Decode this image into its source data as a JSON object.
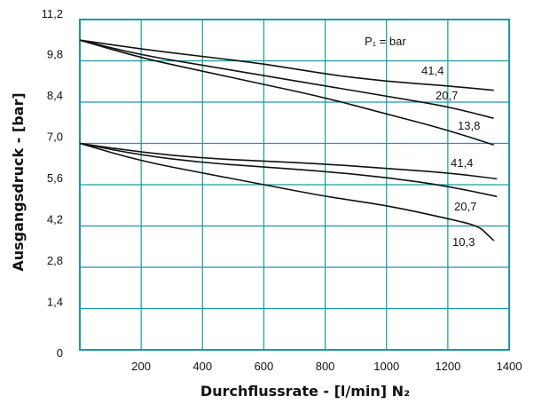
{
  "chart_data": {
    "type": "line",
    "xlabel": "Durchflussrate - [l/min] N₂",
    "ylabel": "Ausgangsdruck - [bar]",
    "legend_title": "P₁ = bar",
    "xlim": [
      0,
      1400
    ],
    "ylim": [
      0,
      11.2
    ],
    "x_ticks": [
      "200",
      "400",
      "600",
      "800",
      "1000",
      "1200",
      "1400"
    ],
    "y_ticks": [
      "0",
      "1,4",
      "2,8",
      "4,2",
      "5,6",
      "7,0",
      "8,4",
      "9,8",
      "11,2"
    ],
    "grid": true,
    "colors": {
      "frame": "#1a9aa0",
      "grid": "#1a9aa0",
      "line": "#111111"
    },
    "series": [
      {
        "name": "41,4",
        "group": "upper",
        "x": [
          0,
          200,
          400,
          600,
          800,
          1000,
          1200,
          1350
        ],
        "y": [
          10.5,
          10.2,
          9.95,
          9.7,
          9.35,
          9.1,
          8.95,
          8.8
        ]
      },
      {
        "name": "20,7",
        "group": "upper",
        "x": [
          0,
          200,
          400,
          600,
          800,
          1000,
          1200,
          1350
        ],
        "y": [
          10.5,
          10.0,
          9.65,
          9.3,
          8.95,
          8.6,
          8.25,
          7.85
        ]
      },
      {
        "name": "13,8",
        "group": "upper",
        "x": [
          0,
          200,
          400,
          600,
          800,
          1000,
          1200,
          1350
        ],
        "y": [
          10.5,
          9.9,
          9.45,
          9.0,
          8.55,
          8.0,
          7.45,
          6.95
        ]
      },
      {
        "name": "41,4",
        "group": "lower",
        "x": [
          0,
          200,
          400,
          600,
          800,
          1000,
          1200,
          1360
        ],
        "y": [
          7.0,
          6.7,
          6.5,
          6.4,
          6.3,
          6.15,
          6.0,
          5.8
        ]
      },
      {
        "name": "20,7",
        "group": "lower",
        "x": [
          0,
          200,
          400,
          600,
          800,
          1000,
          1200,
          1360
        ],
        "y": [
          7.0,
          6.6,
          6.35,
          6.2,
          6.05,
          5.85,
          5.55,
          5.2
        ]
      },
      {
        "name": "10,3",
        "group": "lower",
        "x": [
          0,
          200,
          400,
          600,
          800,
          1000,
          1200,
          1300,
          1330,
          1350
        ],
        "y": [
          7.0,
          6.4,
          6.0,
          5.6,
          5.2,
          4.9,
          4.45,
          4.2,
          3.9,
          3.7
        ]
      }
    ]
  }
}
